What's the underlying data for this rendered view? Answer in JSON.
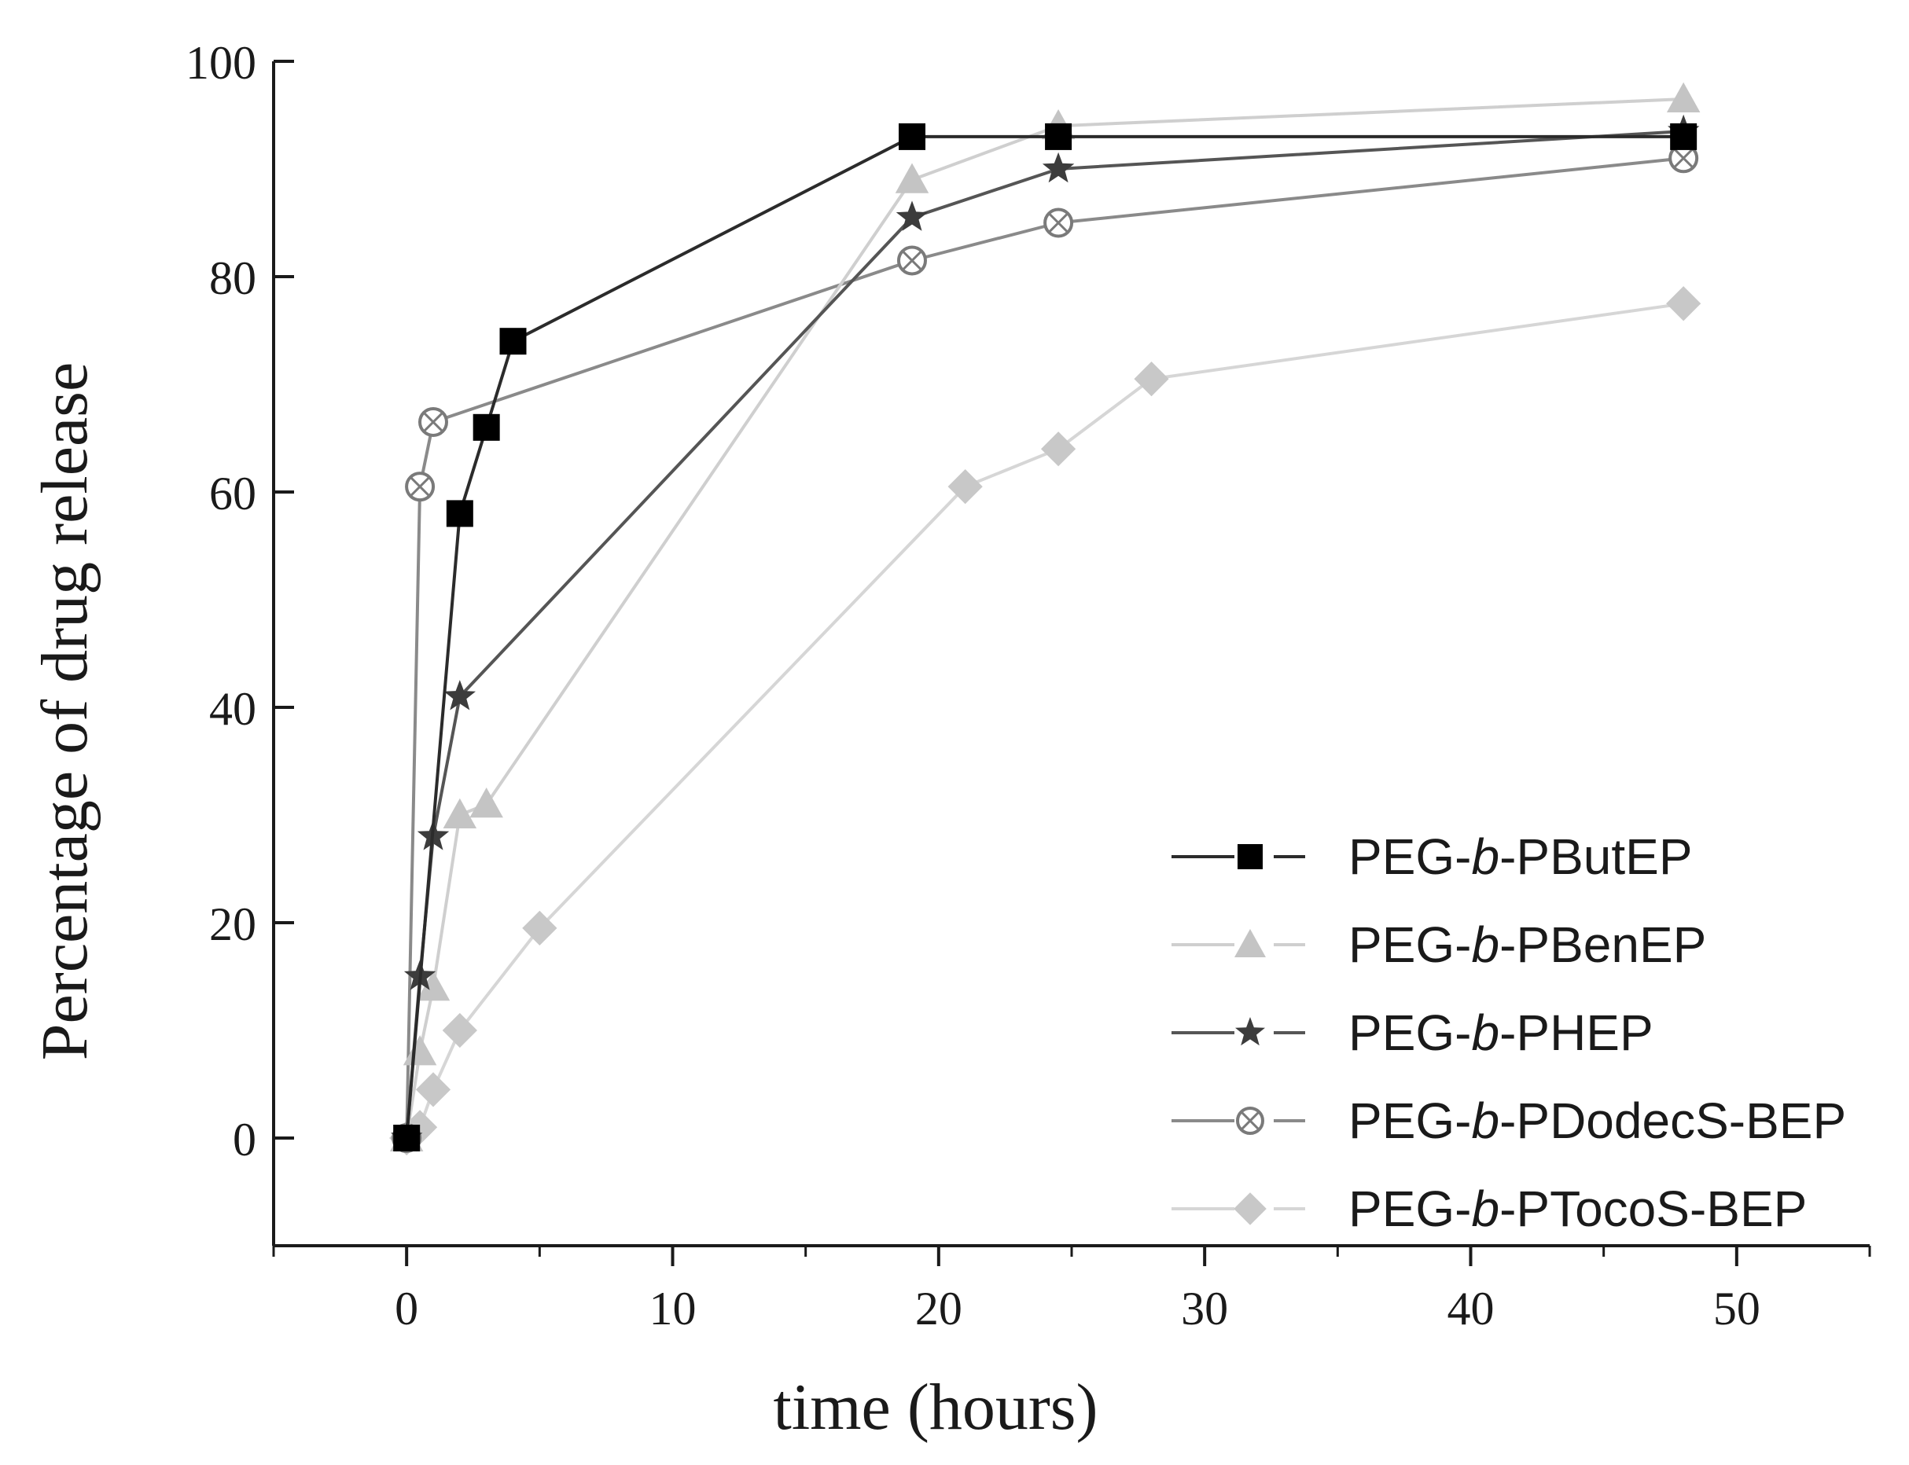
{
  "chart_data": {
    "type": "line",
    "title": "",
    "xlabel": "time (hours)",
    "ylabel": "Percentage of drug release",
    "xlim": [
      -5,
      55
    ],
    "ylim": [
      -10,
      100
    ],
    "xticks": [
      0,
      10,
      20,
      30,
      40,
      50
    ],
    "yticks": [
      0,
      20,
      40,
      60,
      80,
      100
    ],
    "xtick_labels": [
      "0",
      "10",
      "20",
      "30",
      "40",
      "50"
    ],
    "ytick_labels": [
      "0",
      "20",
      "40",
      "60",
      "80",
      "100"
    ],
    "legend_position": "bottom-right",
    "series": [
      {
        "name_prefix": "PEG-",
        "name_italic": "b",
        "name_suffix": "-PButEP",
        "marker": "square",
        "color": "#2b2b2b",
        "marker_color": "#000000",
        "x": [
          0,
          2,
          3,
          4,
          19,
          24.5,
          48
        ],
        "y": [
          0,
          58,
          66,
          74,
          93,
          93,
          93
        ]
      },
      {
        "name_prefix": "PEG-",
        "name_italic": "b",
        "name_suffix": "-PBenEP",
        "marker": "triangle",
        "color": "#cfcfcf",
        "marker_color": "#c4c4c4",
        "x": [
          0,
          0.5,
          1,
          2,
          3,
          19,
          24.5,
          48
        ],
        "y": [
          0,
          8,
          14,
          30,
          31,
          89,
          94,
          96.5
        ]
      },
      {
        "name_prefix": "PEG-",
        "name_italic": "b",
        "name_suffix": "-PHEP",
        "marker": "star",
        "color": "#555555",
        "marker_color": "#3c3c3c",
        "x": [
          0,
          0.5,
          1,
          2,
          19,
          24.5,
          48
        ],
        "y": [
          0,
          15,
          28,
          41,
          85.5,
          90,
          93.5
        ]
      },
      {
        "name_prefix": "PEG-",
        "name_italic": "b",
        "name_suffix": "-PDodecS-BEP",
        "marker": "crossed-circle",
        "color": "#8a8a8a",
        "marker_color": "#7a7a7a",
        "x": [
          0,
          0.5,
          1,
          19,
          24.5,
          48
        ],
        "y": [
          0,
          60.5,
          66.5,
          81.5,
          85,
          91
        ]
      },
      {
        "name_prefix": "PEG-",
        "name_italic": "b",
        "name_suffix": "-PTocoS-BEP",
        "marker": "diamond",
        "color": "#d6d6d6",
        "marker_color": "#c8c8c8",
        "x": [
          0,
          0.5,
          1,
          2,
          5,
          21,
          24.5,
          28,
          48
        ],
        "y": [
          0,
          1,
          4.5,
          10,
          19.5,
          60.5,
          64,
          70.5,
          77.5
        ]
      }
    ]
  }
}
